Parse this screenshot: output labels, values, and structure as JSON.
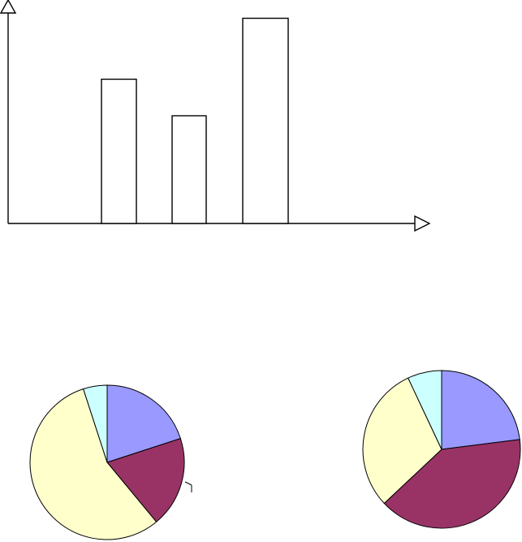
{
  "chart_data": [
    {
      "type": "bar",
      "categories": [
        "",
        "",
        ""
      ],
      "values": [
        71,
        53,
        101
      ],
      "ylim": [
        0,
        110
      ],
      "grid": false,
      "colors": {
        "bar_fill": "#ffffff",
        "bar_stroke": "#000000",
        "axis": "#000000"
      }
    },
    {
      "type": "pie",
      "values": [
        20,
        19,
        56,
        5
      ],
      "colors": [
        "#9999ff",
        "#993366",
        "#ffffcc",
        "#ccffff"
      ]
    },
    {
      "type": "pie",
      "values": [
        23,
        40,
        30,
        7
      ],
      "colors": [
        "#9999ff",
        "#993366",
        "#ffffcc",
        "#ccffff"
      ]
    }
  ]
}
